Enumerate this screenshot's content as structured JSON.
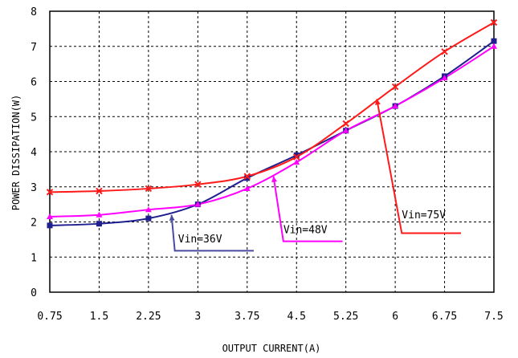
{
  "chart_data": {
    "type": "line",
    "xlabel": "OUTPUT CURRENT(A)",
    "ylabel": "POWER DISSIPATION(W)",
    "xlim": [
      0.75,
      7.5
    ],
    "ylim": [
      0,
      8
    ],
    "grid": true,
    "x_ticks": [
      "0.75",
      "1.5",
      "2.25",
      "3",
      "3.75",
      "4.5",
      "5.25",
      "6",
      "6.75",
      "7.5"
    ],
    "y_ticks": [
      "0",
      "1",
      "2",
      "3",
      "4",
      "5",
      "6",
      "7",
      "8"
    ],
    "x": [
      0.75,
      1.5,
      2.25,
      3,
      3.75,
      4.5,
      5.25,
      6,
      6.75,
      7.5
    ],
    "series": [
      {
        "name": "Vin=36V",
        "color": "#1f1f8f",
        "marker": "square",
        "values": [
          1.9,
          1.95,
          2.1,
          2.5,
          3.25,
          3.9,
          4.6,
          5.3,
          6.15,
          7.15
        ]
      },
      {
        "name": "Vin=48V",
        "color": "#ff00ff",
        "marker": "triangle",
        "values": [
          2.15,
          2.2,
          2.35,
          2.5,
          2.95,
          3.7,
          4.6,
          5.3,
          6.1,
          7.0
        ]
      },
      {
        "name": "Vin=75V",
        "color": "#ff1a1a",
        "marker": "cross",
        "values": [
          2.85,
          2.88,
          2.95,
          3.07,
          3.3,
          3.85,
          4.8,
          5.85,
          6.85,
          7.68
        ]
      }
    ],
    "annotations": [
      {
        "text": "Vin=36V",
        "color": "#4a4aa0",
        "point": [
          2.6,
          2.2
        ],
        "elbow": [
          2.65,
          1.18
        ],
        "end": [
          3.85,
          1.18
        ],
        "label": [
          2.7,
          1.42
        ]
      },
      {
        "text": "Vin=48V",
        "color": "#ff00ff",
        "point": [
          4.15,
          3.3
        ],
        "elbow": [
          4.3,
          1.45
        ],
        "end": [
          5.2,
          1.45
        ],
        "label": [
          4.3,
          1.68
        ]
      },
      {
        "text": "Vin=75V",
        "color": "#ff1a1a",
        "point": [
          5.72,
          5.5
        ],
        "elbow": [
          6.1,
          1.68
        ],
        "end": [
          7.0,
          1.68
        ],
        "label": [
          6.1,
          2.1
        ]
      }
    ]
  }
}
